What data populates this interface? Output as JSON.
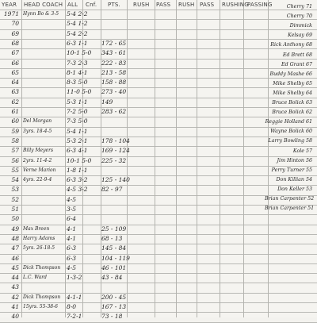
{
  "sheet": {
    "headers": [
      "YEAR",
      "HEAD COACH",
      "ALL",
      "Cnf.",
      "PTS.",
      "RUSH",
      "PASS",
      "RUSH",
      "PASS",
      "RUSHING",
      "PASSING"
    ],
    "rows": [
      {
        "year": "1971",
        "coach": "Hynn Bo & 3-5",
        "record": "5-4  2-2",
        "pts": ""
      },
      {
        "year": "70",
        "coach": "",
        "record": "5-4  1-2",
        "pts": ""
      },
      {
        "year": "69",
        "coach": "",
        "record": "5-4  2-2",
        "pts": ""
      },
      {
        "year": "68",
        "coach": "",
        "record": "6-3  1-1",
        "pts": "172 - 65"
      },
      {
        "year": "67",
        "coach": "",
        "record": "10-1  5-0",
        "pts": "343 - 61"
      },
      {
        "year": "66",
        "coach": "",
        "record": "7-3  2-3",
        "pts": "222 - 83"
      },
      {
        "year": "65",
        "coach": "",
        "record": "8-1  4-1",
        "pts": "213 - 58"
      },
      {
        "year": "64",
        "coach": "",
        "record": "8-3  5-0",
        "pts": "158 - 88"
      },
      {
        "year": "63",
        "coach": "",
        "record": "11-0  5-0",
        "pts": "273 - 40"
      },
      {
        "year": "62",
        "coach": "",
        "record": "5-3  1-1",
        "pts": "149"
      },
      {
        "year": "61",
        "coach": "",
        "record": "7-2  5-0",
        "pts": "283 - 62"
      },
      {
        "year": "60",
        "coach": "Del Morgan",
        "record": "7-3  5-0",
        "pts": ""
      },
      {
        "year": "59",
        "coach": "3yrs. 18-4-5",
        "record": "5-4  1-1",
        "pts": ""
      },
      {
        "year": "58",
        "coach": "",
        "record": "5-3  2-1",
        "pts": "178 - 104"
      },
      {
        "year": "57",
        "coach": "Billy Meyers",
        "record": "6-3  4-1",
        "pts": "169 - 124"
      },
      {
        "year": "56",
        "coach": "2yrs. 11-4-2",
        "record": "10-1  5-0",
        "pts": "225 - 32"
      },
      {
        "year": "55",
        "coach": "Verne Marion",
        "record": "1-8  1-1",
        "pts": ""
      },
      {
        "year": "54",
        "coach": "4yrs. 22-9-4",
        "record": "6-3  3-2",
        "pts": "125 - 140"
      },
      {
        "year": "53",
        "coach": "",
        "record": "4-5  3-2",
        "pts": "82 - 97"
      },
      {
        "year": "52",
        "coach": "",
        "record": "4-5",
        "pts": ""
      },
      {
        "year": "51",
        "coach": "",
        "record": "3-5",
        "pts": ""
      },
      {
        "year": "50",
        "coach": "",
        "record": "6-4",
        "pts": ""
      },
      {
        "year": "49",
        "coach": "Max Breen",
        "record": "4-1",
        "pts": "25 - 109"
      },
      {
        "year": "48",
        "coach": "Harry Adams",
        "record": "4-1",
        "pts": "68 - 13"
      },
      {
        "year": "47",
        "coach": "5yrs. 26-18-5",
        "record": "6-3",
        "pts": "145 - 84"
      },
      {
        "year": "46",
        "coach": "",
        "record": "6-3",
        "pts": "104 - 119"
      },
      {
        "year": "45",
        "coach": "Dick Thompson",
        "record": "4-5",
        "pts": "46 - 101"
      },
      {
        "year": "44",
        "coach": "L.C. Ward",
        "record": "1-3-2",
        "pts": "43 - 84"
      },
      {
        "year": "43",
        "coach": "",
        "record": "",
        "pts": ""
      },
      {
        "year": "42",
        "coach": "Dick Thompson",
        "record": "4-1-1",
        "pts": "200 - 45"
      },
      {
        "year": "41",
        "coach": "15yrs. 55-38-6",
        "record": "8-0",
        "pts": "167 - 13"
      },
      {
        "year": "40",
        "coach": "",
        "record": "7-2-1",
        "pts": "73 - 18"
      }
    ],
    "players": [
      "Cherry 71",
      "Cherry 70",
      "Dimmick",
      "Kelsay 69",
      "Rick Anthony 68",
      "Ed Brett 68",
      "Ed Grant 67",
      "Buddy Mashe 66",
      "Mike Shelby 65",
      "Mike Shelby 64",
      "Bruce Bolick 63",
      "Bruce Bolick 62",
      "Reggie Holland 61",
      "Wayne Bolick 60",
      "Larry Bowling 58",
      "Kole 57",
      "Jim Hinton 56",
      "Perry Turner 55",
      "Don Killian 54",
      "Don Keller 53",
      "Brian Carpenter 52",
      "Brian Carpenter 51"
    ]
  }
}
